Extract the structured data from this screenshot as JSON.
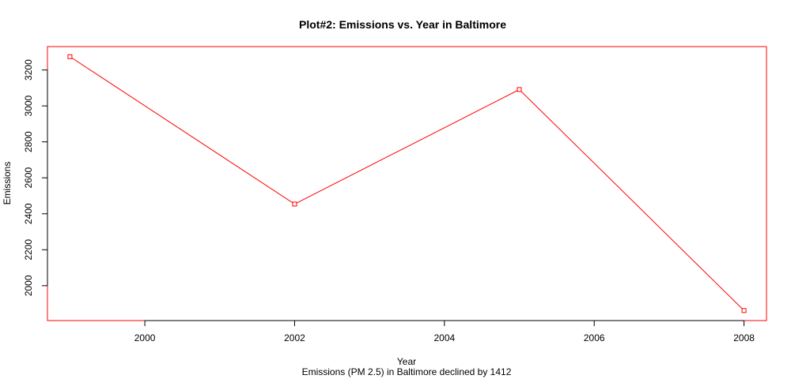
{
  "chart_data": {
    "type": "line",
    "title": "Plot#2: Emissions vs. Year in Baltimore",
    "xlabel": "Year",
    "ylabel": "Emissions",
    "caption": "Emissions (PM 2.5) in Baltimore declined by 1412",
    "x": [
      1999,
      2002,
      2005,
      2008
    ],
    "series": [
      {
        "values": [
          3274,
          2454,
          3091,
          1862
        ]
      }
    ],
    "xlim": [
      1998.7,
      2008.3
    ],
    "ylim": [
      1806,
      3330
    ],
    "xticks": [
      2000,
      2002,
      2004,
      2006,
      2008
    ],
    "yticks": [
      2000,
      2200,
      2400,
      2600,
      2800,
      3000,
      3200
    ],
    "grid": false,
    "colors": {
      "series": "#ff0000",
      "plot_border": "#ff0000",
      "axes": "#000000"
    },
    "marker": "open-square"
  }
}
